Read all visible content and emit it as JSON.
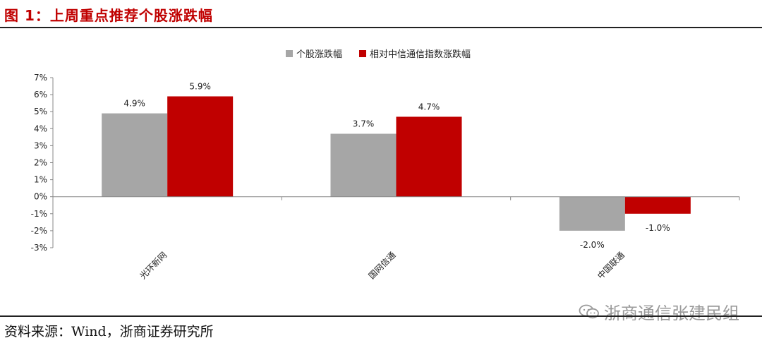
{
  "figure": {
    "title": "图 1：上周重点推荐个股涨跌幅",
    "source": "资料来源：Wind，浙商证券研究所",
    "watermark": "浙商通信张建民组"
  },
  "colors": {
    "title": "#c00000",
    "series_stock": "#a6a6a6",
    "series_index": "#c00000"
  },
  "chart_data": {
    "type": "bar",
    "categories": [
      "光环新网",
      "国网信通",
      "中国联通"
    ],
    "series": [
      {
        "name": "个股涨跌幅",
        "values": [
          4.9,
          3.7,
          -2.0
        ],
        "labels": [
          "4.9%",
          "3.7%",
          "-2.0%"
        ]
      },
      {
        "name": "相对中信通信指数涨跌幅",
        "values": [
          5.9,
          4.7,
          -1.0
        ],
        "labels": [
          "5.9%",
          "4.7%",
          "-1.0%"
        ]
      }
    ],
    "ylim": [
      -3,
      7
    ],
    "yticks": [
      7,
      6,
      5,
      4,
      3,
      2,
      1,
      0,
      -1,
      -2,
      -3
    ],
    "ytick_labels": [
      "7%",
      "6%",
      "5%",
      "4%",
      "3%",
      "2%",
      "1%",
      "0%",
      "-1%",
      "-2%",
      "-3%"
    ],
    "legend_position": "top-center",
    "grid": false
  }
}
